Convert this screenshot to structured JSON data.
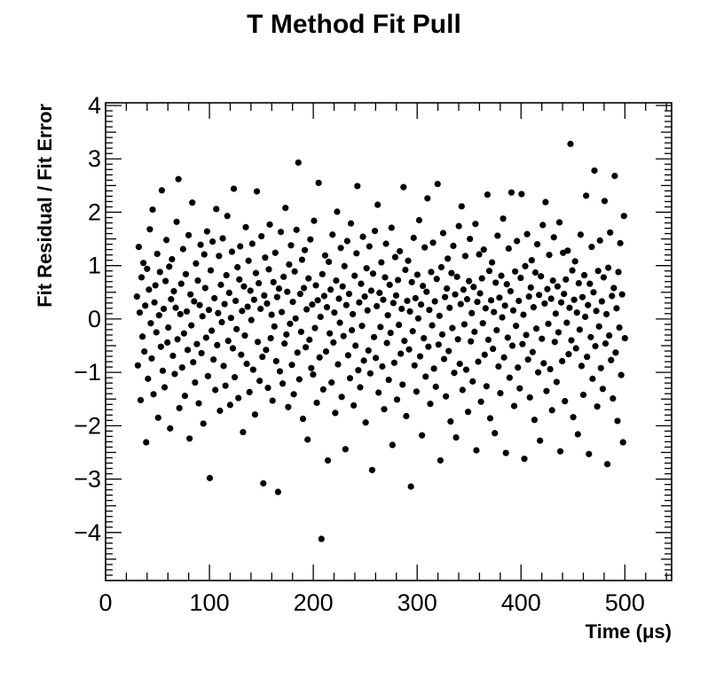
{
  "chart_data": {
    "type": "scatter",
    "title": "T Method Fit Pull",
    "xlabel": "Time (μs)",
    "ylabel": "Fit Residual / Fit Error",
    "xlim": [
      0,
      545
    ],
    "ylim": [
      -4.9,
      4.05
    ],
    "x_ticks": [
      0,
      100,
      200,
      300,
      400,
      500
    ],
    "y_ticks": [
      -4,
      -3,
      -2,
      -1,
      0,
      1,
      2,
      3,
      4
    ],
    "x_tick_labels": [
      "0",
      "100",
      "200",
      "300",
      "400",
      "500"
    ],
    "y_tick_labels": [
      "−4",
      "−3",
      "−2",
      "−1",
      "0",
      "1",
      "2",
      "3",
      "4"
    ],
    "grid": false,
    "legend": "none",
    "marker_color": "#000000",
    "series": [
      {
        "x_start": 30.2,
        "x_end": 500.0,
        "x_step": 0.149,
        "points_shown": "every 14th time bin",
        "values": [
          0.42,
          -0.87,
          1.35,
          0.12,
          -1.52,
          0.78,
          -0.33,
          1.05,
          -0.61,
          0.25,
          -2.31,
          0.94,
          -1.12,
          0.55,
          1.68,
          -0.08,
          -0.74,
          2.05,
          -1.41,
          0.31,
          0.63,
          -0.25,
          1.22,
          -1.85,
          0.07,
          0.88,
          -0.52,
          2.41,
          -0.97,
          0.19,
          -1.28,
          0.71,
          1.48,
          -0.44,
          -0.16,
          0.98,
          -2.05,
          0.37,
          1.12,
          -0.69,
          0.52,
          -1.03,
          0.21,
          1.82,
          -0.38,
          2.62,
          -1.67,
          0.09,
          0.66,
          -0.91,
          1.31,
          -0.27,
          -1.44,
          0.84,
          0.14,
          -0.58,
          1.57,
          -2.24,
          0.46,
          -0.12,
          2.18,
          -0.81,
          0.33,
          -1.19,
          1.04,
          -0.47,
          0.72,
          -1.58,
          0.26,
          1.39,
          -0.64,
          0.05,
          -1.96,
          1.21,
          0.58,
          -0.35,
          1.64,
          -1.07,
          0.17,
          -2.98,
          0.91,
          -0.22,
          1.45,
          -0.76,
          0.39,
          -1.33,
          2.06,
          -0.49,
          0.11,
          1.18,
          -1.72,
          0.64,
          -0.06,
          1.51,
          -0.88,
          0.28,
          -1.25,
          0.82,
          1.93,
          -0.41,
          0.49,
          -1.61,
          0.02,
          1.26,
          -0.55,
          2.44,
          -1.09,
          0.34,
          -0.19,
          0.97,
          -1.48,
          0.74,
          1.36,
          -0.67,
          0.15,
          -2.12,
          0.61,
          -0.31,
          1.72,
          -0.84,
          0.23,
          1.09,
          -1.37,
          0.53,
          -0.02,
          1.41,
          -0.95,
          0.36,
          -1.79,
          0.86,
          2.39,
          -0.43,
          0.67,
          -1.16,
          0.19,
          1.55,
          -0.71,
          -3.08,
          0.44,
          1.15,
          -0.58,
          0.29,
          -1.29,
          0.93,
          1.77,
          -0.36,
          0.08,
          -1.53,
          0.69,
          -0.14,
          1.24,
          -0.79,
          0.41,
          -3.24,
          0.57,
          -0.98,
          1.63,
          0.13,
          -1.21,
          0.79,
          -0.46,
          2.08,
          -0.29,
          0.51,
          -1.65,
          1.02,
          -0.09,
          1.38,
          -0.86,
          0.32,
          -1.41,
          0.89,
          0.01,
          1.67,
          -0.63,
          2.93,
          -1.13,
          0.47,
          -0.24,
          1.11,
          -1.87,
          0.58,
          1.29,
          -0.53,
          0.18,
          -2.26,
          0.76,
          -0.39,
          1.49,
          -0.92,
          0.27,
          -1.04,
          1.84,
          -0.17,
          0.63,
          -1.57,
          0.35,
          2.55,
          -0.72,
          0.04,
          -4.12,
          0.84,
          -1.32,
          0.43,
          1.19,
          -0.61,
          0.22,
          -2.65,
          1.07,
          -0.27,
          0.55,
          -1.19,
          1.58,
          -0.44,
          0.12,
          -1.76,
          0.72,
          2.01,
          -0.85,
          0.38,
          -0.07,
          1.33,
          -1.46,
          0.61,
          -0.32,
          0.99,
          -2.44,
          0.26,
          1.46,
          -0.68,
          0.47,
          -1.11,
          1.79,
          -0.21,
          0.09,
          -1.62,
          0.81,
          -0.5,
          1.23,
          2.49,
          -0.96,
          0.31,
          -1.28,
          0.66,
          -0.13,
          1.54,
          -0.78,
          0.42,
          -1.94,
          0.95,
          0.16,
          -0.59,
          1.36,
          -1.02,
          0.53,
          -2.83,
          0.85,
          -0.34,
          1.65,
          -0.73,
          0.24,
          2.14,
          -1.38,
          0.49,
          -0.15,
          1.06,
          -0.89,
          0.36,
          -1.69,
          0.78,
          1.41,
          -0.45,
          0.07,
          -1.14,
          0.64,
          -0.26,
          1.71,
          -2.36,
          0.3,
          -0.82,
          1.16,
          0.44,
          -1.51,
          0.73,
          -0.11,
          1.27,
          -0.65,
          0.19,
          -1.23,
          2.47,
          -0.41,
          0.92,
          -1.82,
          0.34,
          1.09,
          -0.57,
          0.14,
          -3.14,
          0.69,
          -0.23,
          1.52,
          -0.87,
          0.39,
          -1.36,
          0.83,
          0.01,
          1.85,
          -0.7,
          0.27,
          -2.18,
          0.62,
          -0.36,
          1.34,
          -1.08,
          0.51,
          2.26,
          -0.52,
          0.17,
          -1.59,
          0.88,
          -0.12,
          1.43,
          -0.93,
          0.33,
          -1.27,
          0.75,
          2.53,
          -0.48,
          0.06,
          -2.65,
          0.97,
          -0.29,
          1.61,
          -0.75,
          0.41,
          -1.45,
          0.57,
          1.13,
          -0.6,
          0.21,
          -1.92,
          0.86,
          -0.17,
          1.37,
          -1.01,
          0.46,
          -2.22,
          0.79,
          -0.38,
          1.74,
          -0.84,
          0.28,
          2.11,
          -1.33,
          0.55,
          -0.1,
          1.18,
          -0.95,
          0.37,
          -1.74,
          0.71,
          1.5,
          -0.42,
          0.11,
          -1.17,
          0.6,
          -0.24,
          1.78,
          -2.46,
          0.32,
          -0.8,
          1.21,
          0.48,
          -1.55,
          0.76,
          -0.08,
          1.3,
          -0.67,
          0.2,
          -1.26,
          2.33,
          -0.39,
          0.9,
          -1.86,
          0.35,
          1.06,
          -0.56,
          0.13,
          -2.14,
          0.68,
          -0.21,
          1.56,
          -0.89,
          0.4,
          -1.39,
          0.81,
          0.03,
          1.88,
          -0.72,
          0.25,
          -2.51,
          0.65,
          -0.35,
          1.32,
          -1.1,
          0.52,
          2.37,
          -0.5,
          0.16,
          -1.63,
          0.89,
          -0.13,
          1.46,
          -0.91,
          0.34,
          -1.3,
          0.77,
          2.34,
          -0.47,
          0.08,
          -2.62,
          0.99,
          -0.3,
          1.59,
          -0.76,
          0.42,
          -1.47,
          0.59,
          1.1,
          -0.62,
          0.22,
          -1.89,
          0.87,
          -0.18,
          1.4,
          -1.0,
          0.45,
          -2.28,
          0.8,
          -0.37,
          1.76,
          -0.83,
          0.29,
          2.19,
          -1.35,
          0.56,
          -0.09,
          1.2,
          -0.94,
          0.38,
          -1.71,
          0.72,
          1.53,
          -0.43,
          0.1,
          -1.18,
          0.61,
          -0.25,
          1.81,
          -2.48,
          0.31,
          -0.79,
          1.24,
          0.47,
          -1.54,
          0.74,
          -0.07,
          1.28,
          -0.66,
          0.21,
          3.28,
          -0.4,
          0.91,
          -1.84,
          0.36,
          1.08,
          -0.55,
          0.12,
          -2.16,
          0.67,
          -0.2,
          1.58,
          -0.88,
          0.41,
          -1.42,
          0.82,
          0.04,
          2.31,
          -0.71,
          0.26,
          -2.53,
          0.66,
          -0.34,
          1.35,
          -1.12,
          0.5,
          2.78,
          -0.51,
          0.15,
          -1.64,
          0.9,
          -0.14,
          1.47,
          -0.92,
          0.33,
          -1.31,
          0.78,
          2.21,
          -0.46,
          0.09,
          -2.72,
          0.96,
          -0.31,
          1.62,
          -0.77,
          0.43,
          -1.49,
          0.58,
          2.68,
          -0.63,
          0.2,
          -1.91,
          0.88,
          -0.16,
          1.42,
          -1.05,
          0.46,
          -2.31,
          1.93,
          -0.36
        ]
      }
    ]
  }
}
